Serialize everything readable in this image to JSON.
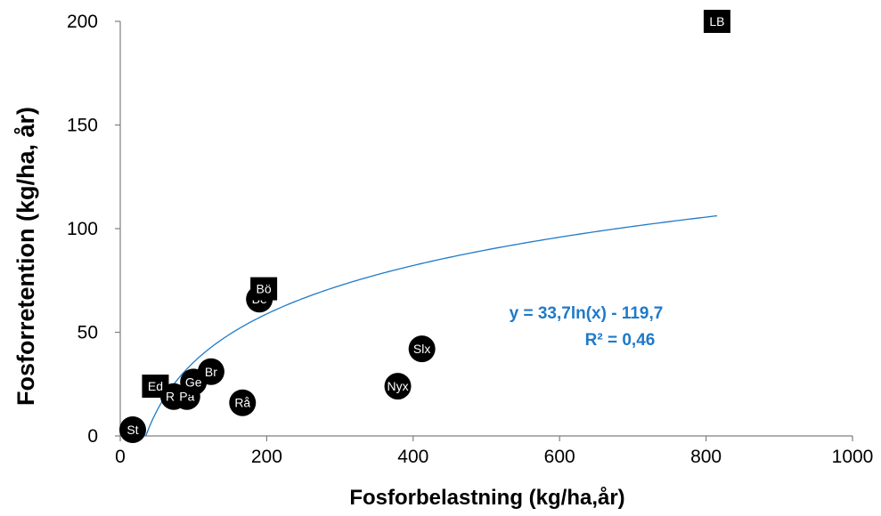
{
  "chart_data": {
    "type": "scatter",
    "xlabel": "Fosforbelastning  (kg/ha,år)",
    "ylabel": "Fosforretention (kg/ha, år)",
    "xlim": [
      0,
      1000
    ],
    "ylim": [
      0,
      200
    ],
    "x_ticks": [
      "0",
      "200",
      "400",
      "600",
      "800",
      "1000"
    ],
    "y_ticks": [
      "0",
      "50",
      "100",
      "150",
      "200"
    ],
    "grid": false,
    "points": [
      {
        "label": "St",
        "x": 17,
        "y": 3,
        "marker": "circle"
      },
      {
        "label": "Ed",
        "x": 48,
        "y": 24,
        "marker": "square"
      },
      {
        "label": "Re",
        "x": 73,
        "y": 19,
        "marker": "circle"
      },
      {
        "label": "På",
        "x": 91,
        "y": 19,
        "marker": "circle"
      },
      {
        "label": "Ge",
        "x": 100,
        "y": 26,
        "marker": "circle"
      },
      {
        "label": "Br",
        "x": 124,
        "y": 31,
        "marker": "circle"
      },
      {
        "label": "Rå",
        "x": 167,
        "y": 16,
        "marker": "circle"
      },
      {
        "label": "Be",
        "x": 190,
        "y": 66,
        "marker": "circle"
      },
      {
        "label": "Bö",
        "x": 196,
        "y": 71,
        "marker": "square"
      },
      {
        "label": "Nyx",
        "x": 379,
        "y": 24,
        "marker": "circle"
      },
      {
        "label": "Slx",
        "x": 412,
        "y": 42,
        "marker": "circle"
      },
      {
        "label": "LB",
        "x": 815,
        "y": 200,
        "marker": "square"
      }
    ],
    "trendline": {
      "type": "logarithmic",
      "a": 33.7,
      "b": -119.7,
      "x_range": [
        35,
        815
      ],
      "color": "#1f7ac8",
      "equation_text": "y = 33,7ln(x) - 119,7",
      "r2_text": "R² = 0,46"
    }
  }
}
